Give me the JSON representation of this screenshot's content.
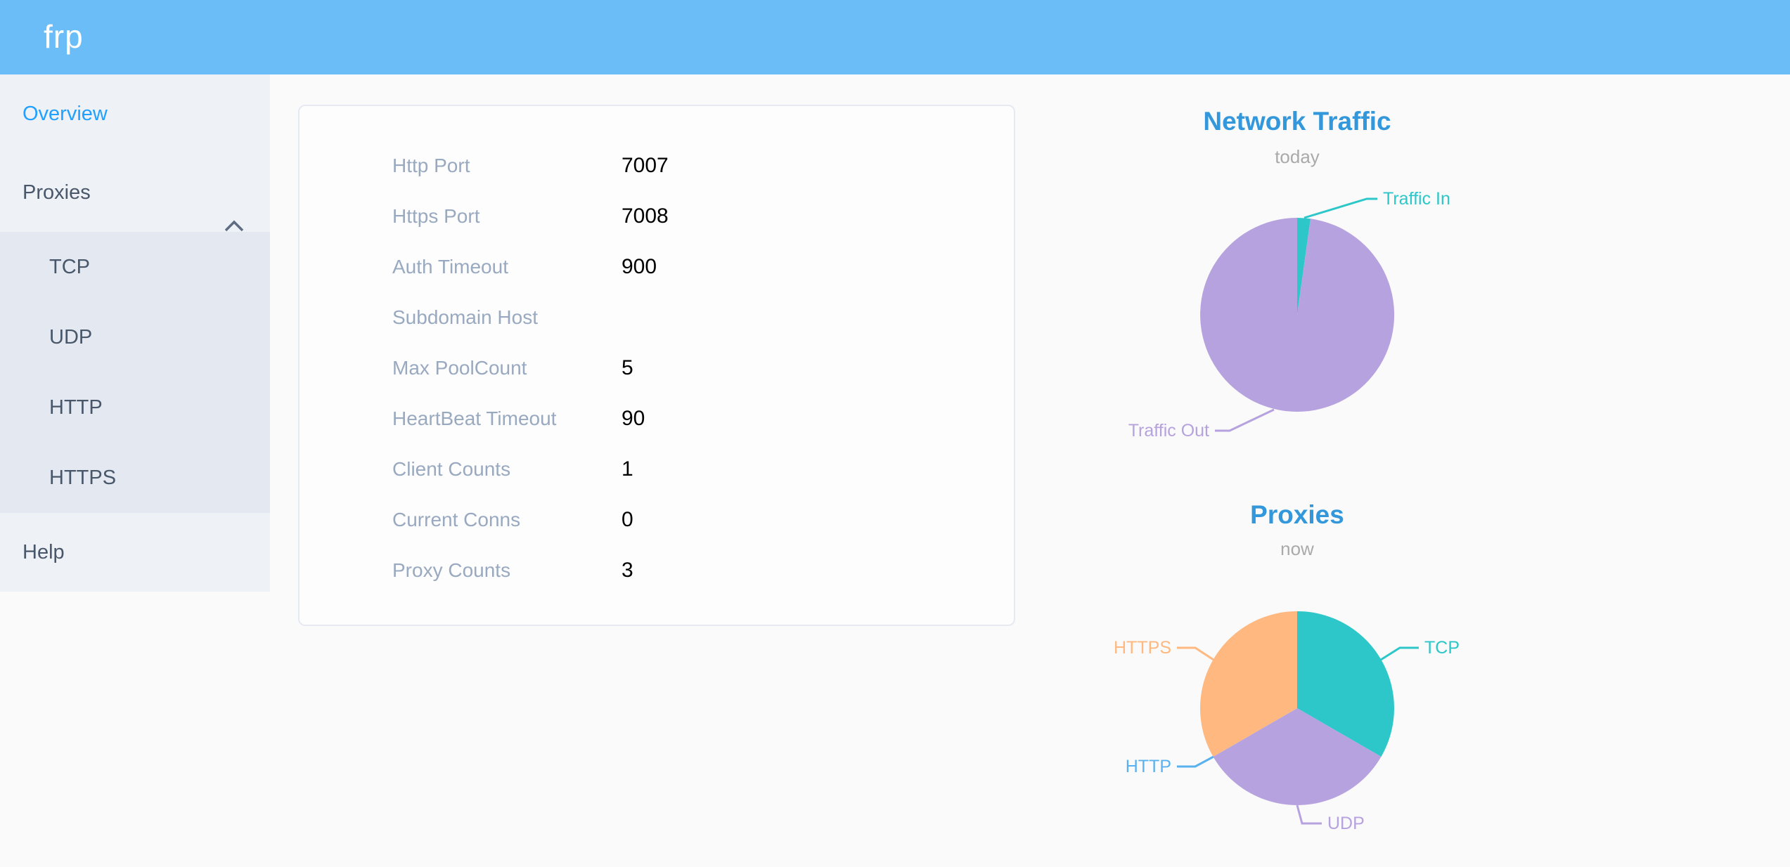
{
  "header": {
    "logo": "frp"
  },
  "sidebar": {
    "items": [
      {
        "label": "Overview",
        "active": true
      },
      {
        "label": "Proxies",
        "expanded": true,
        "children": [
          "TCP",
          "UDP",
          "HTTP",
          "HTTPS"
        ]
      },
      {
        "label": "Help"
      }
    ]
  },
  "overview_card": {
    "rows": [
      {
        "label": "Http Port",
        "value": "7007"
      },
      {
        "label": "Https Port",
        "value": "7008"
      },
      {
        "label": "Auth Timeout",
        "value": "900"
      },
      {
        "label": "Subdomain Host",
        "value": ""
      },
      {
        "label": "Max PoolCount",
        "value": "5"
      },
      {
        "label": "HeartBeat Timeout",
        "value": "90"
      },
      {
        "label": "Client Counts",
        "value": "1"
      },
      {
        "label": "Current Conns",
        "value": "0"
      },
      {
        "label": "Proxy Counts",
        "value": "3"
      }
    ]
  },
  "chart_data": [
    {
      "type": "pie",
      "title": "Network Traffic",
      "subtitle": "today",
      "legend_position": "none",
      "labels_style": "outside with leader lines",
      "slices": [
        {
          "label": "Traffic In",
          "value_percent_estimate": 2.2,
          "color": "#2ec7c9"
        },
        {
          "label": "Traffic Out",
          "value_percent_estimate": 97.8,
          "color": "#b6a2de"
        }
      ]
    },
    {
      "type": "pie",
      "title": "Proxies",
      "subtitle": "now",
      "legend_position": "none",
      "labels_style": "outside with leader lines",
      "slices": [
        {
          "label": "TCP",
          "value": 1,
          "color": "#2ec7c9"
        },
        {
          "label": "UDP",
          "value": 1,
          "color": "#b6a2de"
        },
        {
          "label": "HTTP",
          "value": 0,
          "color": "#5ab1ef"
        },
        {
          "label": "HTTPS",
          "value": 1,
          "color": "#ffb980"
        }
      ]
    }
  ],
  "colors": {
    "header_bg": "#6bbdf8",
    "sidebar_bg": "#eef1f6",
    "submenu_bg": "#e4e8f1",
    "menu_text": "#48576a",
    "active_menu_item": "#20a0ff",
    "chart_title": "#3398db",
    "chart_subtitle": "#aaaaaa",
    "form_label": "#99a9bf"
  }
}
